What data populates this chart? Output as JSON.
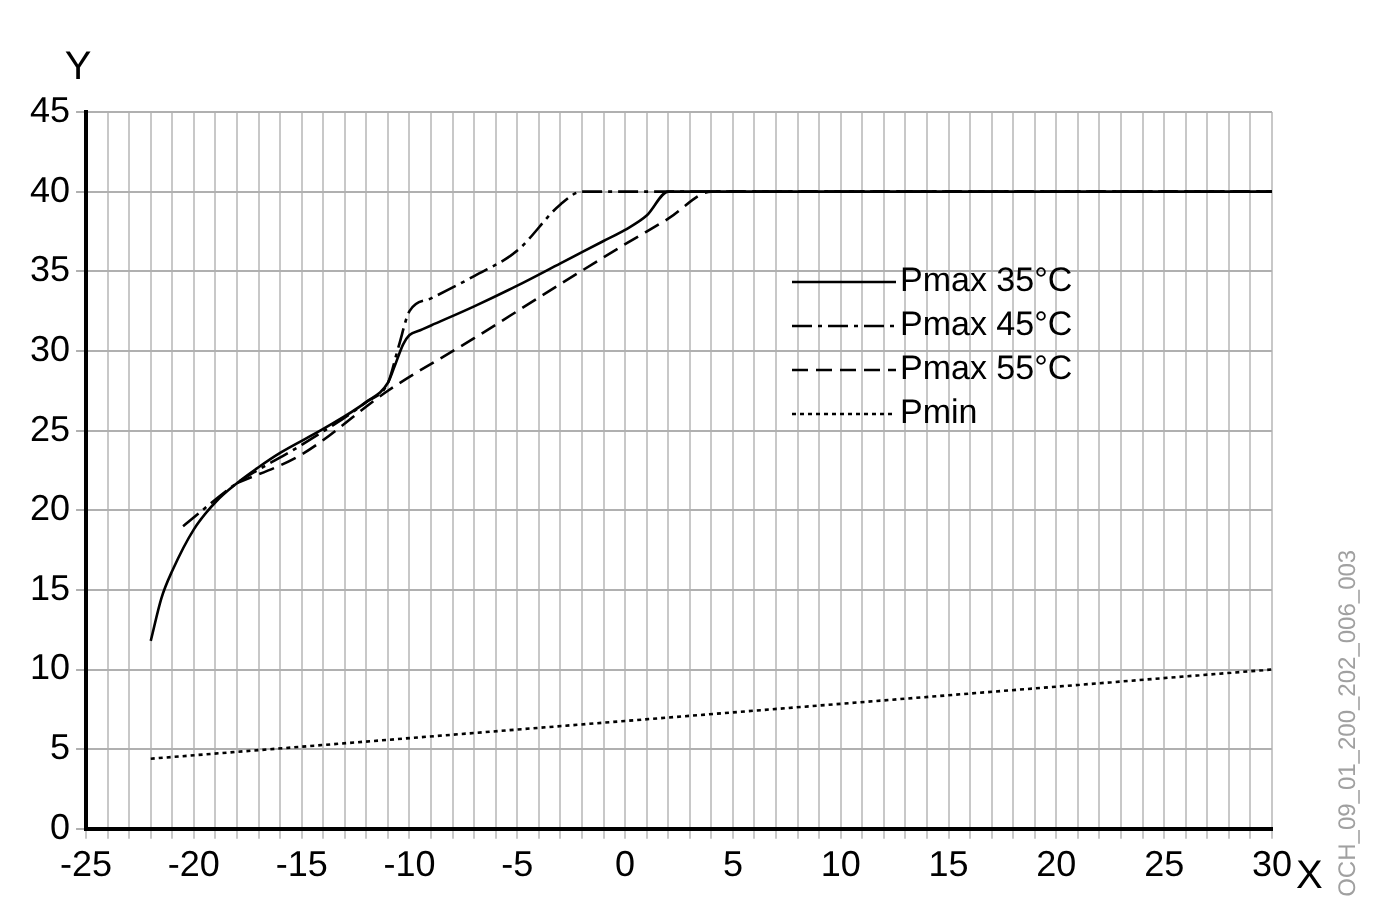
{
  "chart_data": {
    "type": "line",
    "xlabel": "X",
    "ylabel": "Y",
    "legend": "right",
    "grid": true,
    "marker": "none",
    "annotations": [
      "OCH_09_01_200_202_006_003"
    ],
    "xlim": [
      -25,
      30
    ],
    "ylim": [
      0,
      45
    ],
    "yticks": [
      0,
      5,
      10,
      15,
      20,
      25,
      30,
      35,
      40,
      45
    ],
    "xticks": [
      -25,
      {
        "value": -24,
        "label": null
      },
      {
        "value": -23,
        "label": null
      },
      {
        "value": -22,
        "label": null
      },
      {
        "value": -21,
        "label": null
      },
      -20,
      {
        "value": -19,
        "label": null
      },
      {
        "value": -18,
        "label": null
      },
      {
        "value": -17,
        "label": null
      },
      {
        "value": -16,
        "label": null
      },
      -15,
      {
        "value": -14,
        "label": null
      },
      {
        "value": -13,
        "label": null
      },
      {
        "value": -12,
        "label": null
      },
      {
        "value": -11,
        "label": null
      },
      -10,
      {
        "value": -9,
        "label": null
      },
      {
        "value": -8,
        "label": null
      },
      {
        "value": -7,
        "label": null
      },
      {
        "value": -6,
        "label": null
      },
      -5,
      {
        "value": -4,
        "label": null
      },
      {
        "value": -3,
        "label": null
      },
      {
        "value": -2,
        "label": null
      },
      {
        "value": -1,
        "label": null
      },
      0,
      {
        "value": 1,
        "label": null
      },
      {
        "value": 2,
        "label": null
      },
      {
        "value": 3,
        "label": null
      },
      {
        "value": 4,
        "label": null
      },
      5,
      {
        "value": 6,
        "label": null
      },
      {
        "value": 7,
        "label": null
      },
      {
        "value": 8,
        "label": null
      },
      {
        "value": 9,
        "label": null
      },
      10,
      {
        "value": 11,
        "label": null
      },
      {
        "value": 12,
        "label": null
      },
      {
        "value": 13,
        "label": null
      },
      {
        "value": 14,
        "label": null
      },
      15,
      {
        "value": 16,
        "label": null
      },
      {
        "value": 17,
        "label": null
      },
      {
        "value": 18,
        "label": null
      },
      {
        "value": 19,
        "label": null
      },
      20,
      {
        "value": 21,
        "label": null
      },
      {
        "value": 22,
        "label": null
      },
      {
        "value": 23,
        "label": null
      },
      {
        "value": 24,
        "label": null
      },
      25,
      {
        "value": 26,
        "label": null
      },
      {
        "value": 27,
        "label": null
      },
      {
        "value": 28,
        "label": null
      },
      {
        "value": 29,
        "label": null
      },
      30
    ],
    "series": [
      {
        "name": "Pmax 35°C",
        "color": "#000000",
        "line_style": "solid",
        "x": [
          -22,
          -21.5,
          -21,
          -20,
          -19,
          -18,
          -17,
          -16,
          -14,
          -12,
          -11,
          -10.7,
          -10.3,
          -10,
          -9.5,
          -9,
          -7,
          -5,
          -3,
          -1,
          0,
          1,
          2,
          30
        ],
        "values": [
          11.8,
          14.5,
          16.2,
          18.8,
          20.5,
          21.7,
          22.7,
          23.6,
          25.1,
          26.8,
          28,
          29,
          30.4,
          31,
          31.3,
          31.6,
          32.8,
          34.1,
          35.5,
          36.9,
          37.6,
          38.5,
          40,
          40
        ]
      },
      {
        "name": "Pmax 45°C",
        "color": "#000000",
        "line_style": "dashdot",
        "x": [
          -20.5,
          -18,
          -15,
          -12,
          -11,
          -10.5,
          -10,
          -9,
          -7,
          -5,
          -3,
          -2,
          30
        ],
        "values": [
          19,
          21.7,
          24.1,
          26.8,
          28,
          30.3,
          32.5,
          33.3,
          34.7,
          36.3,
          39.2,
          40,
          40
        ]
      },
      {
        "name": "Pmax 55°C",
        "color": "#000000",
        "line_style": "dashed",
        "x": [
          -18,
          -15,
          -11,
          -7,
          -3,
          0,
          2,
          4,
          30
        ],
        "values": [
          21.7,
          23.5,
          27.5,
          30.8,
          34.2,
          36.7,
          38.3,
          40,
          40
        ]
      },
      {
        "name": "Pmin",
        "color": "#000000",
        "line_style": "dotted",
        "x": [
          -22,
          30
        ],
        "values": [
          4.4,
          10
        ]
      }
    ]
  }
}
